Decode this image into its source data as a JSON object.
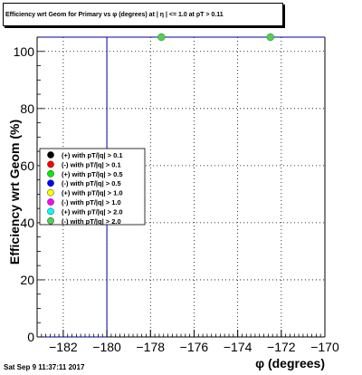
{
  "chart_data": {
    "type": "scatter",
    "title": "Efficiency wrt Geom for Primary vs φ (degrees) at | η | <= 1.0 at pT > 0.11",
    "xlabel": "φ (degrees)",
    "ylabel": "Efficiency wrt Geom (%)",
    "xlim": [
      -183.2,
      -170
    ],
    "ylim": [
      0,
      105
    ],
    "x_ticks": [
      -182,
      -180,
      -178,
      -176,
      -174,
      -172,
      -170
    ],
    "x_tick_labels": [
      "−182",
      "−180",
      "−178",
      "−176",
      "−174",
      "−172",
      "−170"
    ],
    "y_ticks": [
      0,
      20,
      40,
      60,
      80,
      100
    ],
    "y_tick_labels": [
      "0",
      "20",
      "40",
      "60",
      "80",
      "100"
    ],
    "grid": true,
    "vertical_line_x": -180,
    "legend_position": "center-left",
    "series": [
      {
        "name": "(+) with pT/|q| > 0.1",
        "color": "#000000",
        "x": [],
        "y": []
      },
      {
        "name": "(-) with pT/|q| > 0.1",
        "color": "#ff0000",
        "x": [],
        "y": []
      },
      {
        "name": "(+) with pT/|q| > 0.5",
        "color": "#00ee00",
        "x": [],
        "y": []
      },
      {
        "name": "(-) with pT/|q| > 0.5",
        "color": "#0000ff",
        "x": [],
        "y": []
      },
      {
        "name": "(+) with pT/|q| > 1.0",
        "color": "#ffff00",
        "x": [],
        "y": []
      },
      {
        "name": "(-) with pT/|q| > 1.0",
        "color": "#ff00ff",
        "x": [],
        "y": []
      },
      {
        "name": "(+) with pT/|q| > 2.0",
        "color": "#00ffff",
        "x": [],
        "y": []
      },
      {
        "name": "(-) with pT/|q| > 2.0",
        "color": "#55cc55",
        "x": [
          -177.5,
          -172.5
        ],
        "y": [
          105,
          105
        ]
      }
    ]
  },
  "footer": {
    "timestamp": "Sat Sep  9 11:37:11 2017"
  }
}
